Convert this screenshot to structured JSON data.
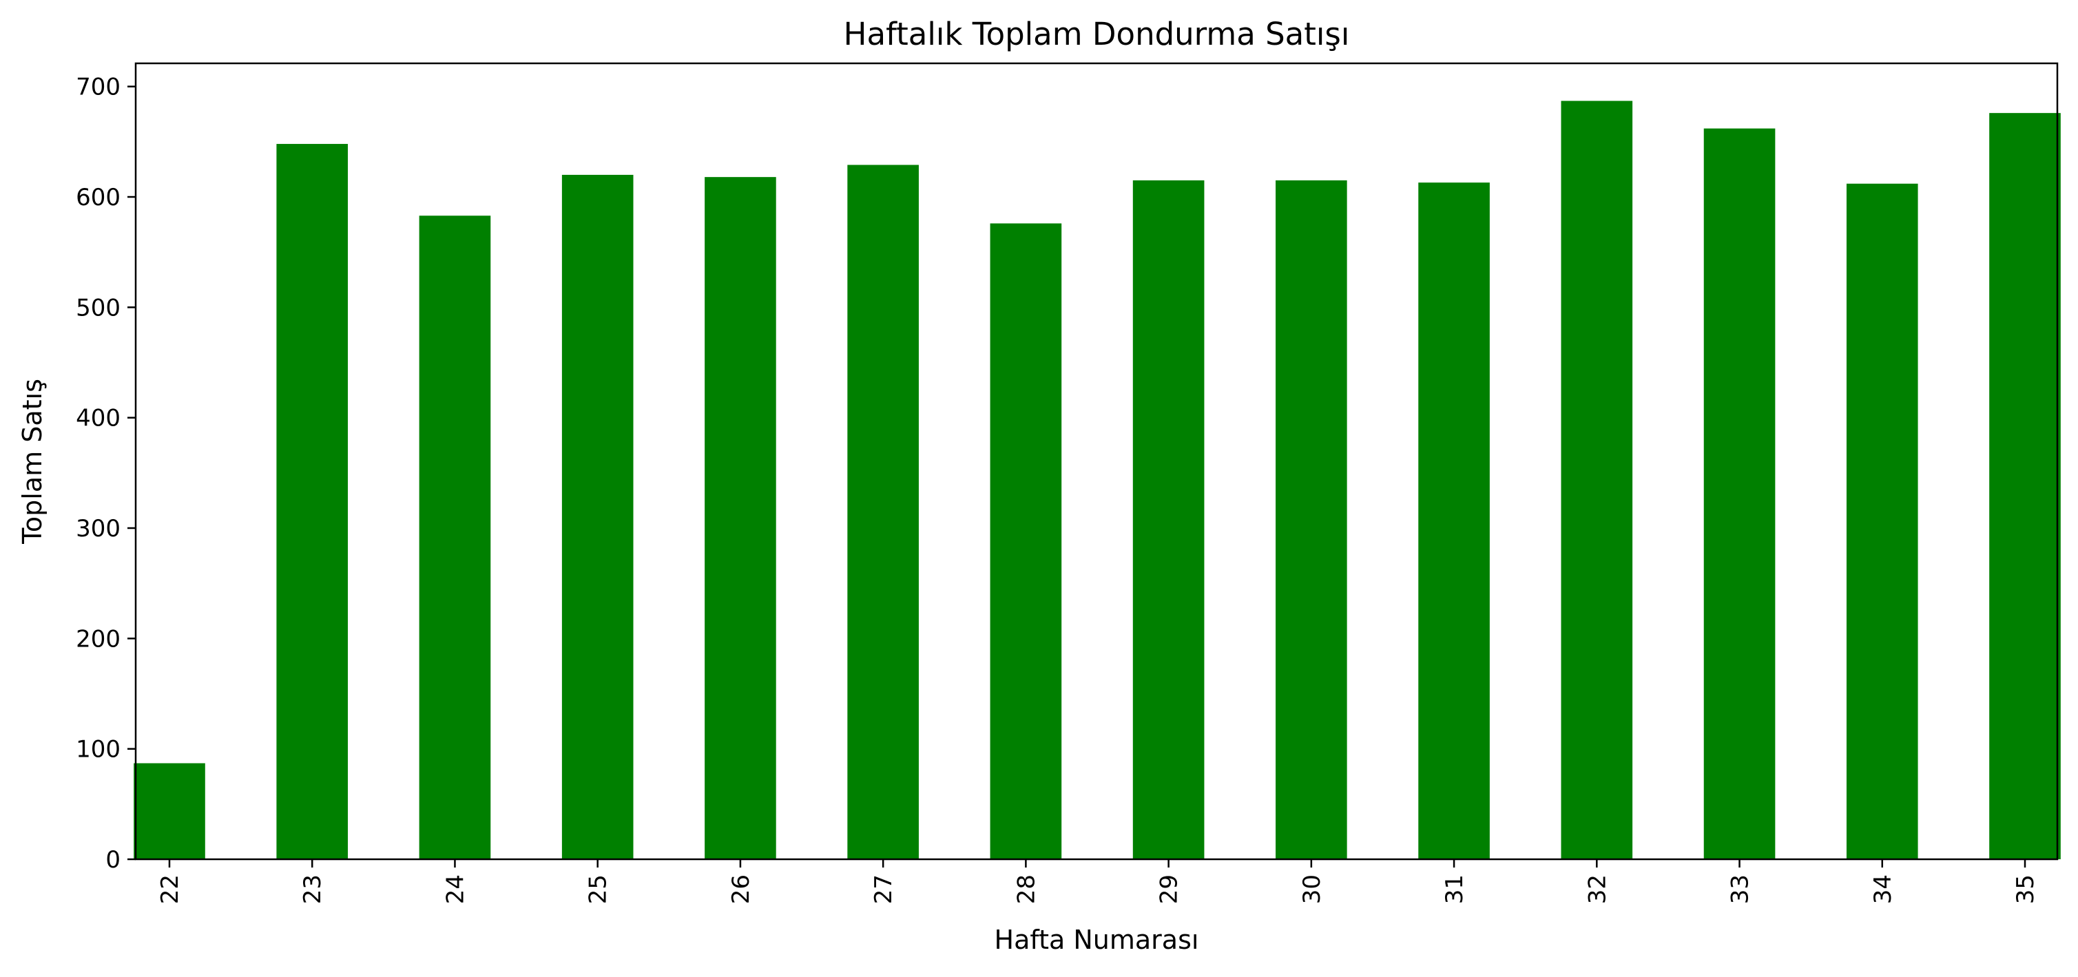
{
  "chart_data": {
    "type": "bar",
    "title": "Haftalık Toplam Dondurma Satışı",
    "xlabel": "Hafta Numarası",
    "ylabel": "Toplam Satış",
    "categories": [
      "22",
      "23",
      "24",
      "25",
      "26",
      "27",
      "28",
      "29",
      "30",
      "31",
      "32",
      "33",
      "34",
      "35"
    ],
    "values": [
      87,
      648,
      583,
      620,
      618,
      629,
      576,
      615,
      615,
      613,
      687,
      662,
      612,
      676
    ],
    "ylim": [
      0,
      721
    ],
    "yticks": [
      0,
      100,
      200,
      300,
      400,
      500,
      600,
      700
    ],
    "bar_color": "#008000",
    "grid": false,
    "legend": "none",
    "xtick_rotation": "vertical"
  }
}
